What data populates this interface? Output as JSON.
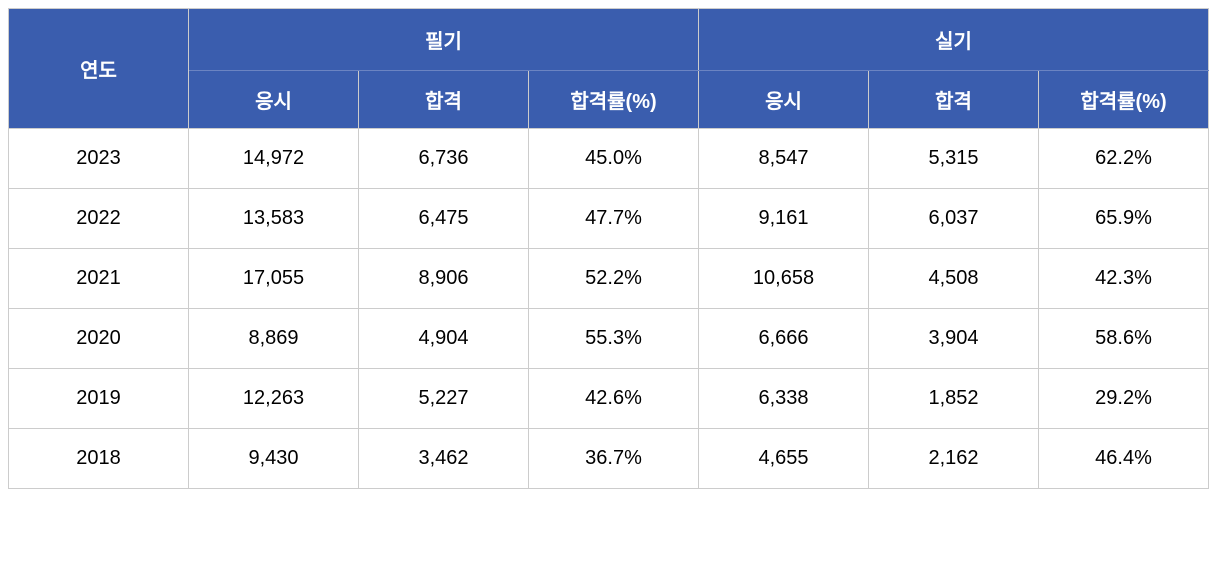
{
  "table": {
    "header_bg_color": "#3a5dae",
    "header_text_color": "#ffffff",
    "border_color": "#cccccc",
    "cell_bg_color": "#ffffff",
    "cell_text_color": "#000000",
    "font_size": 20,
    "headers": {
      "year": "연도",
      "written": "필기",
      "practical": "실기",
      "applicants": "응시",
      "passed": "합격",
      "pass_rate": "합격률(%)"
    },
    "rows": [
      {
        "year": "2023",
        "written_applicants": "14,972",
        "written_passed": "6,736",
        "written_rate": "45.0%",
        "practical_applicants": "8,547",
        "practical_passed": "5,315",
        "practical_rate": "62.2%"
      },
      {
        "year": "2022",
        "written_applicants": "13,583",
        "written_passed": "6,475",
        "written_rate": "47.7%",
        "practical_applicants": "9,161",
        "practical_passed": "6,037",
        "practical_rate": "65.9%"
      },
      {
        "year": "2021",
        "written_applicants": "17,055",
        "written_passed": "8,906",
        "written_rate": "52.2%",
        "practical_applicants": "10,658",
        "practical_passed": "4,508",
        "practical_rate": "42.3%"
      },
      {
        "year": "2020",
        "written_applicants": "8,869",
        "written_passed": "4,904",
        "written_rate": "55.3%",
        "practical_applicants": "6,666",
        "practical_passed": "3,904",
        "practical_rate": "58.6%"
      },
      {
        "year": "2019",
        "written_applicants": "12,263",
        "written_passed": "5,227",
        "written_rate": "42.6%",
        "practical_applicants": "6,338",
        "practical_passed": "1,852",
        "practical_rate": "29.2%"
      },
      {
        "year": "2018",
        "written_applicants": "9,430",
        "written_passed": "3,462",
        "written_rate": "36.7%",
        "practical_applicants": "4,655",
        "practical_passed": "2,162",
        "practical_rate": "46.4%"
      }
    ]
  }
}
